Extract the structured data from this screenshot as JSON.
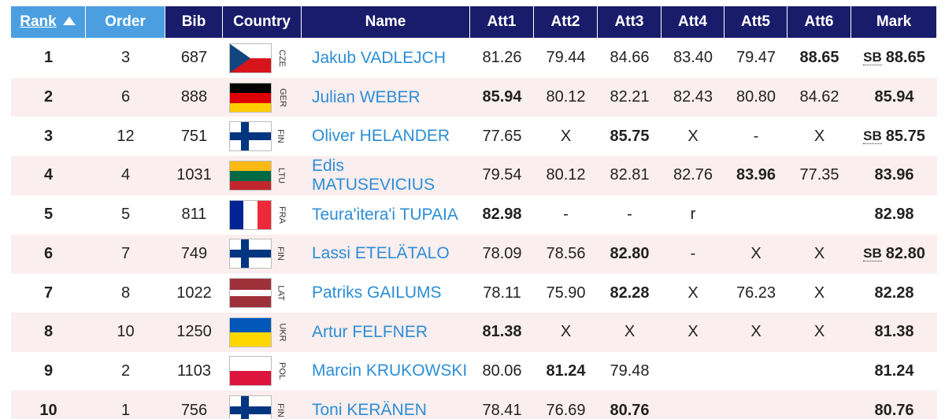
{
  "table": {
    "headers": [
      "Rank",
      "Order",
      "Bib",
      "Country",
      "Name",
      "Att1",
      "Att2",
      "Att3",
      "Att4",
      "Att5",
      "Att6",
      "Mark"
    ],
    "rows": [
      {
        "rank": 1,
        "order": 3,
        "bib": 687,
        "country": "CZE",
        "name": "Jakub VADLEJCH",
        "attempts": [
          "81.26",
          "79.44",
          "84.66",
          "83.40",
          "79.47",
          "88.65"
        ],
        "sb": "SB",
        "mark": "88.65"
      },
      {
        "rank": 2,
        "order": 6,
        "bib": 888,
        "country": "GER",
        "name": "Julian WEBER",
        "attempts": [
          "85.94",
          "80.12",
          "82.21",
          "82.43",
          "80.80",
          "84.62"
        ],
        "sb": null,
        "mark": "85.94"
      },
      {
        "rank": 3,
        "order": 12,
        "bib": 751,
        "country": "FIN",
        "name": "Oliver HELANDER",
        "attempts": [
          "77.65",
          "X",
          "85.75",
          "X",
          "-",
          "X"
        ],
        "sb": "SB",
        "mark": "85.75"
      },
      {
        "rank": 4,
        "order": 4,
        "bib": 1031,
        "country": "LTU",
        "name": "Edis MATUSEVICIUS",
        "attempts": [
          "79.54",
          "80.12",
          "82.81",
          "82.76",
          "83.96",
          "77.35"
        ],
        "sb": null,
        "mark": "83.96"
      },
      {
        "rank": 5,
        "order": 5,
        "bib": 811,
        "country": "FRA",
        "name": "Teura'itera'i TUPAIA",
        "attempts": [
          "82.98",
          "-",
          "-",
          "r",
          null,
          null
        ],
        "sb": null,
        "mark": "82.98"
      },
      {
        "rank": 6,
        "order": 7,
        "bib": 749,
        "country": "FIN",
        "name": "Lassi ETELÄTALO",
        "attempts": [
          "78.09",
          "78.56",
          "82.80",
          "-",
          "X",
          "X"
        ],
        "sb": "SB",
        "mark": "82.80"
      },
      {
        "rank": 7,
        "order": 8,
        "bib": 1022,
        "country": "LAT",
        "name": "Patriks GAILUMS",
        "attempts": [
          "78.11",
          "75.90",
          "82.28",
          "X",
          "76.23",
          "X"
        ],
        "sb": null,
        "mark": "82.28"
      },
      {
        "rank": 8,
        "order": 10,
        "bib": 1250,
        "country": "UKR",
        "name": "Artur FELFNER",
        "attempts": [
          "81.38",
          "X",
          "X",
          "X",
          "X",
          "X"
        ],
        "sb": null,
        "mark": "81.38"
      },
      {
        "rank": 9,
        "order": 2,
        "bib": 1103,
        "country": "POL",
        "name": "Marcin KRUKOWSKI",
        "attempts": [
          "80.06",
          "81.24",
          "79.48",
          null,
          null,
          null
        ],
        "sb": null,
        "mark": "81.24"
      },
      {
        "rank": 10,
        "order": 1,
        "bib": 756,
        "country": "FIN",
        "name": "Toni KERÄNEN",
        "attempts": [
          "78.41",
          "76.69",
          "80.76",
          null,
          null,
          null
        ],
        "sb": null,
        "mark": "80.76"
      }
    ]
  }
}
